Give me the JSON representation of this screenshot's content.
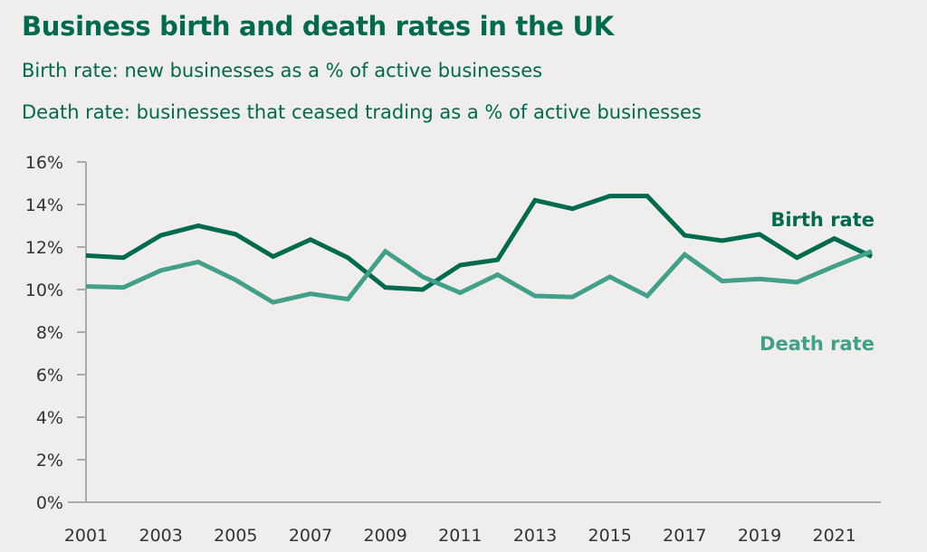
{
  "chart_data": {
    "type": "line",
    "title": "Business birth and death rates in the UK",
    "subtitles": [
      "Birth rate: new businesses as a % of active businesses",
      "Death rate: businesses that ceased trading as a % of active businesses"
    ],
    "xlabel": "",
    "ylabel": "",
    "ylim": [
      0,
      16
    ],
    "yticks": [
      "0%",
      "2%",
      "4%",
      "6%",
      "8%",
      "10%",
      "12%",
      "14%",
      "16%"
    ],
    "xticks": [
      "2001",
      "2003",
      "2005",
      "2007",
      "2009",
      "2011",
      "2013",
      "2015",
      "2017",
      "2019",
      "2021"
    ],
    "x": [
      2001,
      2002,
      2003,
      2004,
      2005,
      2006,
      2007,
      2008,
      2009,
      2010,
      2011,
      2012,
      2013,
      2014,
      2015,
      2016,
      2017,
      2018,
      2019,
      2020,
      2021,
      2022
    ],
    "grid": false,
    "legend": "inline labels at right",
    "series": [
      {
        "name": "Birth rate",
        "color": "#006a4e",
        "values": [
          11.6,
          11.5,
          12.55,
          13.0,
          12.6,
          11.55,
          12.35,
          11.5,
          10.1,
          10.0,
          11.15,
          11.4,
          14.2,
          13.8,
          14.4,
          14.4,
          12.55,
          12.3,
          12.6,
          11.5,
          12.4,
          11.55
        ]
      },
      {
        "name": "Death rate",
        "color": "#42a08a",
        "values": [
          10.15,
          10.1,
          10.9,
          11.3,
          10.45,
          9.4,
          9.8,
          9.55,
          11.8,
          10.6,
          9.85,
          10.7,
          9.7,
          9.65,
          10.6,
          9.7,
          11.65,
          10.4,
          10.5,
          10.35,
          11.1,
          11.8
        ]
      }
    ]
  }
}
